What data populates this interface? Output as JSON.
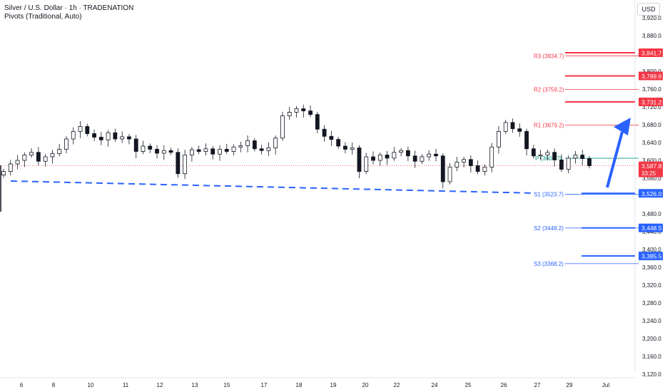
{
  "header": {
    "title": "Silver / U.S. Dollar · 1h · TRADENATION",
    "indicator": "Pivots (Traditional, Auto)",
    "currency": "USD"
  },
  "chart_data": {
    "type": "candlestick",
    "x_ticks": [
      "6",
      "8",
      "10",
      "11",
      "12",
      "13",
      "15",
      "17",
      "18",
      "19",
      "20",
      "22",
      "24",
      "25",
      "26",
      "27",
      "29",
      "Jul"
    ],
    "y_ticks": [
      "3,920.0",
      "3,880.0",
      "3,800.0",
      "3,760.0",
      "3,720.0",
      "3,680.0",
      "3,640.0",
      "3,600.0",
      "3,560.0",
      "3,480.0",
      "3,440.0",
      "3,400.0",
      "3,360.0",
      "3,320.0",
      "3,280.0",
      "3,240.0",
      "3,200.0",
      "3,160.0",
      "3,120.0"
    ],
    "pivots": [
      {
        "label": "R3 (3834.7)",
        "value": 3834.7,
        "color": "#f23645"
      },
      {
        "label": "R2 (3759.2)",
        "value": 3759.2,
        "color": "#f23645"
      },
      {
        "label": "R1 (3679.2)",
        "value": 3679.2,
        "color": "#f23645"
      },
      {
        "label": "P (3604.7)",
        "value": 3604.7,
        "color": "#089981"
      },
      {
        "label": "S1 (3523.7)",
        "value": 3523.7,
        "color": "#2962ff"
      },
      {
        "label": "S2 (3448.2)",
        "value": 3448.2,
        "color": "#2962ff"
      },
      {
        "label": "S3 (3368.2)",
        "value": 3368.2,
        "color": "#2962ff"
      }
    ],
    "price_tags": [
      {
        "text": "3,841.7",
        "value": 3841.7,
        "color": "#f23645"
      },
      {
        "text": "3,789.6",
        "value": 3789.6,
        "color": "#f23645"
      },
      {
        "text": "3,731.2",
        "value": 3731.2,
        "color": "#f23645"
      },
      {
        "text": "3,526.0",
        "value": 3526.0,
        "color": "#2962ff"
      },
      {
        "text": "3,448.5",
        "value": 3448.5,
        "color": "#2962ff"
      },
      {
        "text": "3,385.5",
        "value": 3385.5,
        "color": "#2962ff"
      }
    ],
    "current_price": {
      "value": 3587.8,
      "text": "3,587.8",
      "countdown": "33:25",
      "color": "#f23645"
    },
    "close_path": [
      3575,
      3592,
      3600,
      3612,
      3618,
      3598,
      3608,
      3615,
      3625,
      3648,
      3665,
      3676,
      3660,
      3652,
      3646,
      3662,
      3648,
      3653,
      3648,
      3620,
      3632,
      3625,
      3616,
      3622,
      3618,
      3570,
      3612,
      3624,
      3620,
      3626,
      3614,
      3625,
      3620,
      3630,
      3633,
      3644,
      3626,
      3622,
      3628,
      3650,
      3700,
      3708,
      3716,
      3711,
      3703,
      3670,
      3654,
      3647,
      3632,
      3625,
      3628,
      3575,
      3608,
      3600,
      3612,
      3605,
      3618,
      3622,
      3610,
      3598,
      3608,
      3614,
      3610,
      3552,
      3585,
      3596,
      3602,
      3588,
      3575,
      3585,
      3630,
      3665,
      3685,
      3671,
      3665,
      3626,
      3610,
      3612,
      3618,
      3601,
      3580,
      3605,
      3612,
      3604,
      3588
    ]
  }
}
